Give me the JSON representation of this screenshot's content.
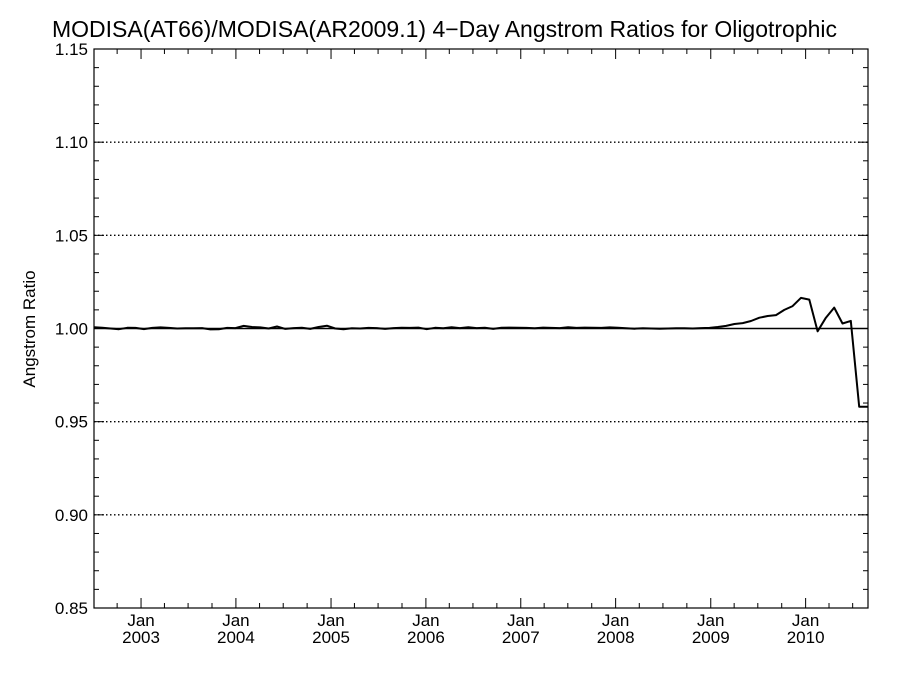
{
  "chart_data": {
    "type": "line",
    "title": "MODISA(AT66)/MODISA(AR2009.1) 4−Day Angstrom Ratios for Oligotrophic",
    "xlabel": "",
    "ylabel": "Angstrom Ratio",
    "xlim": [
      "2002-07-04",
      "2010-08-29"
    ],
    "ylim": [
      0.85,
      1.15
    ],
    "y_ticks": [
      0.85,
      0.9,
      0.95,
      1.0,
      1.05,
      1.1,
      1.15
    ],
    "y_tick_labels": [
      "0.85",
      "0.90",
      "0.95",
      "1.00",
      "1.05",
      "1.10",
      "1.15"
    ],
    "x_ticks": [
      "2003-01-01",
      "2004-01-01",
      "2005-01-01",
      "2006-01-01",
      "2007-01-01",
      "2008-01-01",
      "2009-01-01",
      "2010-01-01"
    ],
    "x_tick_labels": [
      {
        "month": "Jan",
        "year": "2003"
      },
      {
        "month": "Jan",
        "year": "2004"
      },
      {
        "month": "Jan",
        "year": "2005"
      },
      {
        "month": "Jan",
        "year": "2006"
      },
      {
        "month": "Jan",
        "year": "2007"
      },
      {
        "month": "Jan",
        "year": "2008"
      },
      {
        "month": "Jan",
        "year": "2009"
      },
      {
        "month": "Jan",
        "year": "2010"
      }
    ],
    "reference_line": 1.0,
    "grid": {
      "horizontal_dotted": [
        0.9,
        0.95,
        1.05,
        1.1
      ]
    },
    "series": [
      {
        "x": [
          "2002-07-04",
          "2002-08-05",
          "2002-09-06",
          "2002-10-08",
          "2002-11-09",
          "2002-12-11",
          "2003-01-12",
          "2003-02-13",
          "2003-03-17",
          "2003-04-18",
          "2003-05-20",
          "2003-06-21",
          "2003-07-23",
          "2003-08-24",
          "2003-09-25",
          "2003-10-27",
          "2003-11-28",
          "2003-12-30",
          "2004-01-31",
          "2004-03-03",
          "2004-04-04",
          "2004-05-06",
          "2004-06-07",
          "2004-07-09",
          "2004-08-10",
          "2004-09-11",
          "2004-10-13",
          "2004-11-14",
          "2004-12-16",
          "2005-01-17",
          "2005-02-18",
          "2005-03-22",
          "2005-04-23",
          "2005-05-25",
          "2005-06-26",
          "2005-07-28",
          "2005-08-29",
          "2005-09-30",
          "2005-11-01",
          "2005-12-03",
          "2006-01-04",
          "2006-02-05",
          "2006-03-09",
          "2006-04-10",
          "2006-05-12",
          "2006-06-13",
          "2006-07-15",
          "2006-08-16",
          "2006-09-17",
          "2006-10-19",
          "2006-11-20",
          "2006-12-22",
          "2007-01-23",
          "2007-02-24",
          "2007-03-28",
          "2007-04-29",
          "2007-05-31",
          "2007-07-02",
          "2007-08-03",
          "2007-09-04",
          "2007-10-06",
          "2007-11-07",
          "2007-12-09",
          "2008-01-10",
          "2008-02-11",
          "2008-03-14",
          "2008-04-15",
          "2008-05-17",
          "2008-06-18",
          "2008-07-20",
          "2008-08-21",
          "2008-09-22",
          "2008-10-24",
          "2008-11-25",
          "2008-12-27",
          "2009-01-28",
          "2009-03-01",
          "2009-04-02",
          "2009-05-04",
          "2009-06-05",
          "2009-07-07",
          "2009-08-08",
          "2009-09-09",
          "2009-10-11",
          "2009-11-12",
          "2009-12-14",
          "2010-01-15",
          "2010-02-16",
          "2010-03-20",
          "2010-04-21",
          "2010-05-23",
          "2010-06-24",
          "2010-07-26",
          "2010-08-29"
        ],
        "values": [
          1.0007,
          1.0004,
          1.0,
          0.9996,
          1.0004,
          1.0003,
          0.9997,
          1.0003,
          1.0006,
          1.0003,
          1.0,
          1.0001,
          1.0001,
          1.0002,
          0.9995,
          0.9996,
          1.0003,
          1.0002,
          1.0014,
          1.0008,
          1.0006,
          1.0,
          1.0011,
          0.9998,
          1.0002,
          1.0004,
          0.9998,
          1.0008,
          1.0015,
          1.0,
          0.9996,
          1.0001,
          1.0,
          1.0003,
          1.0002,
          0.9998,
          1.0002,
          1.0004,
          1.0003,
          1.0005,
          0.9996,
          1.0004,
          1.0001,
          1.0007,
          1.0002,
          1.0007,
          1.0002,
          1.0004,
          0.9998,
          1.0004,
          1.0005,
          1.0004,
          1.0003,
          1.0001,
          1.0005,
          1.0003,
          1.0002,
          1.0007,
          1.0003,
          1.0005,
          1.0004,
          1.0003,
          1.0006,
          1.0004,
          1.0001,
          0.9999,
          1.0001,
          1.0,
          0.9999,
          1.0,
          1.0001,
          1.0001,
          1.0,
          1.0002,
          1.0003,
          1.0008,
          1.0014,
          1.0024,
          1.0029,
          1.004,
          1.0058,
          1.0067,
          1.0072,
          1.01,
          1.012,
          1.0164,
          1.0155,
          0.9985,
          1.0058,
          1.0112,
          1.0027,
          1.0041,
          0.958,
          0.958
        ]
      }
    ]
  }
}
